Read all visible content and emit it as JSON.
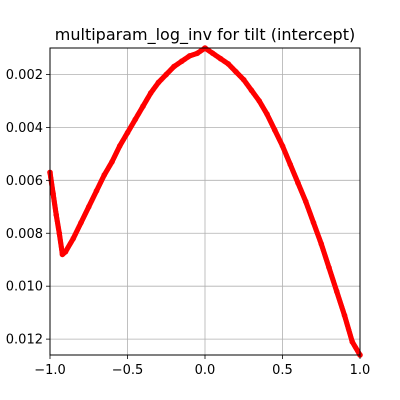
{
  "chart_data": {
    "type": "scatter",
    "title": "multiparam_log_inv for tilt (intercept)",
    "xlabel": "",
    "ylabel": "",
    "xlim": [
      -1.0,
      1.0
    ],
    "ylim": [
      -0.0126,
      -0.001
    ],
    "xticks": [
      -1.0,
      -0.5,
      0.0,
      0.5,
      1.0
    ],
    "xtick_labels": [
      "−1.0",
      "−0.5",
      "0.0",
      "0.5",
      "1.0"
    ],
    "yticks": [
      -0.002,
      -0.004,
      -0.006,
      -0.008,
      -0.01,
      -0.012
    ],
    "ytick_labels": [
      "0.002",
      "0.004",
      "0.006",
      "0.008",
      "0.010",
      "0.012"
    ],
    "grid": true,
    "series": [
      {
        "color": "#ff0000",
        "marker": "circle",
        "x": [
          -1.0,
          -0.98,
          -0.96,
          -0.94,
          -0.92,
          -0.9,
          -0.85,
          -0.8,
          -0.75,
          -0.7,
          -0.65,
          -0.6,
          -0.55,
          -0.5,
          -0.45,
          -0.4,
          -0.35,
          -0.3,
          -0.25,
          -0.2,
          -0.15,
          -0.1,
          -0.05,
          0.0,
          0.05,
          0.1,
          0.15,
          0.2,
          0.25,
          0.3,
          0.35,
          0.4,
          0.45,
          0.5,
          0.55,
          0.6,
          0.65,
          0.7,
          0.75,
          0.8,
          0.85,
          0.9,
          0.95,
          1.0
        ],
        "y": [
          -0.0057,
          -0.0065,
          -0.0073,
          -0.008,
          -0.0088,
          -0.0087,
          -0.0082,
          -0.0076,
          -0.007,
          -0.0064,
          -0.0058,
          -0.0053,
          -0.0047,
          -0.0042,
          -0.0037,
          -0.0032,
          -0.0027,
          -0.0023,
          -0.002,
          -0.0017,
          -0.0015,
          -0.0013,
          -0.0012,
          -0.001,
          -0.0012,
          -0.0014,
          -0.0016,
          -0.0019,
          -0.0022,
          -0.0026,
          -0.003,
          -0.0035,
          -0.0041,
          -0.0047,
          -0.0054,
          -0.0061,
          -0.0068,
          -0.0076,
          -0.0084,
          -0.0093,
          -0.0102,
          -0.0111,
          -0.0121,
          -0.0126
        ]
      }
    ]
  }
}
